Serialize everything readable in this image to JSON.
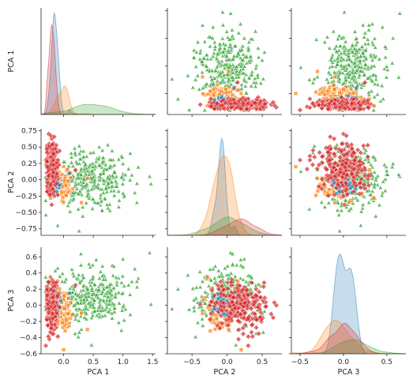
{
  "chart_data": {
    "type": "pairplot",
    "variables": [
      "PCA 1",
      "PCA 2",
      "PCA 3"
    ],
    "axis_labels": {
      "x": [
        "PCA 1",
        "PCA 2",
        "PCA 3"
      ],
      "y": [
        "PCA 1",
        "PCA 2",
        "PCA 3"
      ]
    },
    "ranges": {
      "PCA 1": [
        -0.38,
        1.55
      ],
      "PCA 2": [
        -0.85,
        0.78
      ],
      "PCA 3": [
        -0.6,
        0.72
      ]
    },
    "ticks": {
      "PCA 1": [
        {
          "v": 0.0,
          "label": "0.0"
        },
        {
          "v": 0.5,
          "label": "0.5"
        },
        {
          "v": 1.0,
          "label": "1.0"
        },
        {
          "v": 1.5,
          "label": "1.5"
        }
      ],
      "PCA 2": [
        {
          "v": -0.75,
          "label": "−0.75"
        },
        {
          "v": -0.5,
          "label": "−0.50"
        },
        {
          "v": -0.25,
          "label": "−0.25"
        },
        {
          "v": 0.0,
          "label": "0.00"
        },
        {
          "v": 0.25,
          "label": "0.25"
        },
        {
          "v": 0.5,
          "label": "0.50"
        },
        {
          "v": 0.75,
          "label": "0.75"
        }
      ],
      "PCA 2_x": [
        {
          "v": -0.5,
          "label": "−0.5"
        },
        {
          "v": 0.0,
          "label": "0.0"
        },
        {
          "v": 0.5,
          "label": "0.5"
        }
      ],
      "PCA 3": [
        {
          "v": -0.6,
          "label": "−0.6"
        },
        {
          "v": -0.4,
          "label": "−0.4"
        },
        {
          "v": -0.2,
          "label": "−0.2"
        },
        {
          "v": 0.0,
          "label": "0.0"
        },
        {
          "v": 0.2,
          "label": "0.2"
        },
        {
          "v": 0.4,
          "label": "0.4"
        },
        {
          "v": 0.6,
          "label": "0.6"
        }
      ],
      "PCA 3_x": [
        {
          "v": -0.5,
          "label": "−0.5"
        },
        {
          "v": 0.0,
          "label": "0.0"
        },
        {
          "v": 0.5,
          "label": "0.5"
        }
      ]
    },
    "series": [
      {
        "color": "#1f77b4",
        "marker": "circle",
        "alpha": 0.65,
        "center": [
          -0.15,
          -0.08,
          0.02
        ],
        "spread": [
          0.05,
          0.05,
          0.08
        ],
        "count": 40,
        "sample_points": [
          [
            -0.17,
            0.0,
            0.05
          ],
          [
            -0.12,
            -0.1,
            -0.05
          ],
          [
            -0.15,
            -0.2,
            0.1
          ],
          [
            -0.1,
            0.1,
            -0.12
          ],
          [
            0.1,
            0.1,
            0.15
          ]
        ],
        "kde_peaks": [
          1.0,
          0.95,
          0.98
        ]
      },
      {
        "color": "#ff7f0e",
        "marker": "square",
        "alpha": 0.65,
        "center": [
          -0.02,
          -0.07,
          -0.07
        ],
        "spread": [
          0.09,
          0.12,
          0.13
        ],
        "count": 80,
        "sample_points": [
          [
            0.4,
            0.02,
            -0.3
          ],
          [
            -0.22,
            -0.28,
            0.35
          ],
          [
            0.0,
            0.2,
            -0.55
          ],
          [
            0.3,
            -0.35,
            -0.1
          ],
          [
            -0.1,
            0.15,
            0.3
          ]
        ],
        "kde_peaks": [
          0.28,
          0.78,
          0.33
        ]
      },
      {
        "color": "#2ca02c",
        "marker": "triangle",
        "alpha": 0.65,
        "center": [
          0.45,
          0.02,
          0.1
        ],
        "spread": [
          0.33,
          0.22,
          0.17
        ],
        "count": 320,
        "sample_points": [
          [
            1.45,
            0.05,
            0.65
          ],
          [
            -0.1,
            -0.7,
            0.2
          ],
          [
            0.6,
            0.5,
            -0.1
          ],
          [
            1.2,
            -0.2,
            0.45
          ],
          [
            0.3,
            0.15,
            -0.3
          ]
        ],
        "kde_peaks": [
          0.1,
          0.18,
          0.14
        ]
      },
      {
        "color": "#d62728",
        "marker": "diamond",
        "alpha": 0.65,
        "center": [
          -0.2,
          0.2,
          -0.02
        ],
        "spread": [
          0.05,
          0.2,
          0.14
        ],
        "count": 240,
        "sample_points": [
          [
            -0.25,
            0.7,
            0.0
          ],
          [
            0.2,
            0.15,
            0.25
          ],
          [
            -0.2,
            0.45,
            -0.35
          ],
          [
            -0.18,
            -0.05,
            0.2
          ],
          [
            -0.3,
            0.3,
            -0.5
          ]
        ],
        "kde_peaks": [
          0.88,
          0.16,
          0.3
        ]
      }
    ],
    "legend": "none",
    "grid": false
  }
}
